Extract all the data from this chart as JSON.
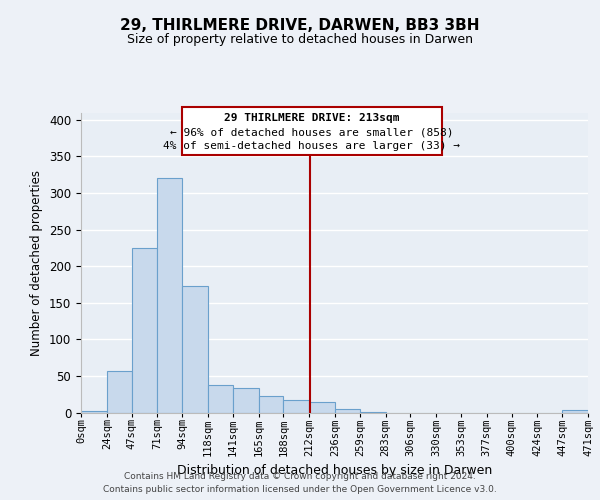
{
  "title": "29, THIRLMERE DRIVE, DARWEN, BB3 3BH",
  "subtitle": "Size of property relative to detached houses in Darwen",
  "xlabel": "Distribution of detached houses by size in Darwen",
  "ylabel": "Number of detached properties",
  "bin_edges": [
    0,
    24,
    47,
    71,
    94,
    118,
    141,
    165,
    188,
    212,
    236,
    259,
    283,
    306,
    330,
    353,
    377,
    400,
    424,
    447,
    471
  ],
  "bar_heights": [
    2,
    57,
    225,
    320,
    173,
    38,
    34,
    23,
    17,
    14,
    5,
    1,
    0,
    0,
    0,
    0,
    0,
    0,
    0,
    3
  ],
  "bar_color": "#c8d9ec",
  "bar_edge_color": "#6aa0cc",
  "vline_x": 213,
  "vline_color": "#aa0000",
  "annotation_lines": [
    "29 THIRLMERE DRIVE: 213sqm",
    "← 96% of detached houses are smaller (858)",
    "4% of semi-detached houses are larger (33) →"
  ],
  "ylim": [
    0,
    410
  ],
  "yticks": [
    0,
    50,
    100,
    150,
    200,
    250,
    300,
    350,
    400
  ],
  "tick_labels": [
    "0sqm",
    "24sqm",
    "47sqm",
    "71sqm",
    "94sqm",
    "118sqm",
    "141sqm",
    "165sqm",
    "188sqm",
    "212sqm",
    "236sqm",
    "259sqm",
    "283sqm",
    "306sqm",
    "330sqm",
    "353sqm",
    "377sqm",
    "400sqm",
    "424sqm",
    "447sqm",
    "471sqm"
  ],
  "footer_line1": "Contains HM Land Registry data © Crown copyright and database right 2024.",
  "footer_line2": "Contains public sector information licensed under the Open Government Licence v3.0.",
  "bg_color": "#edf1f7",
  "plot_bg_color": "#e8eef5",
  "grid_color": "#ffffff"
}
